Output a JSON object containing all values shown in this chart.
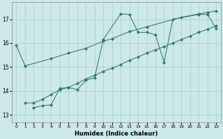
{
  "xlabel": "Humidex (Indice chaleur)",
  "background_color": "#cce8e8",
  "grid_color": "#aad4d4",
  "line_color": "#2d7a6a",
  "xlim": [
    -0.5,
    23.5
  ],
  "ylim": [
    12.7,
    17.7
  ],
  "yticks": [
    13,
    14,
    15,
    16,
    17
  ],
  "xticks": [
    0,
    1,
    2,
    3,
    4,
    5,
    6,
    7,
    8,
    9,
    10,
    11,
    12,
    13,
    14,
    15,
    16,
    17,
    18,
    19,
    20,
    21,
    22,
    23
  ],
  "line1_x": [
    0,
    1,
    4,
    6,
    8,
    10,
    11,
    13,
    15,
    19,
    21,
    22,
    23
  ],
  "line1_y": [
    15.9,
    15.05,
    15.35,
    15.58,
    15.78,
    16.08,
    16.18,
    16.48,
    16.68,
    17.08,
    17.22,
    17.28,
    17.35
  ],
  "line2_x": [
    2,
    3,
    4,
    5,
    6,
    7,
    8,
    9,
    10,
    12,
    13,
    14,
    15,
    16,
    17,
    18,
    21,
    22,
    23
  ],
  "line2_y": [
    13.3,
    13.38,
    13.42,
    14.1,
    14.15,
    14.05,
    14.45,
    14.55,
    16.15,
    17.22,
    17.2,
    16.45,
    16.45,
    16.35,
    15.2,
    17.0,
    17.2,
    17.2,
    16.6
  ],
  "line3_x": [
    1,
    2,
    3,
    4,
    5,
    6,
    7,
    8,
    9,
    10,
    11,
    12,
    13,
    14,
    15,
    16,
    17,
    18,
    19,
    20,
    21,
    22,
    23
  ],
  "line3_y": [
    13.5,
    13.5,
    13.65,
    13.85,
    14.05,
    14.15,
    14.32,
    14.5,
    14.65,
    14.82,
    14.95,
    15.1,
    15.28,
    15.42,
    15.58,
    15.72,
    15.85,
    16.0,
    16.15,
    16.3,
    16.45,
    16.58,
    16.72
  ]
}
